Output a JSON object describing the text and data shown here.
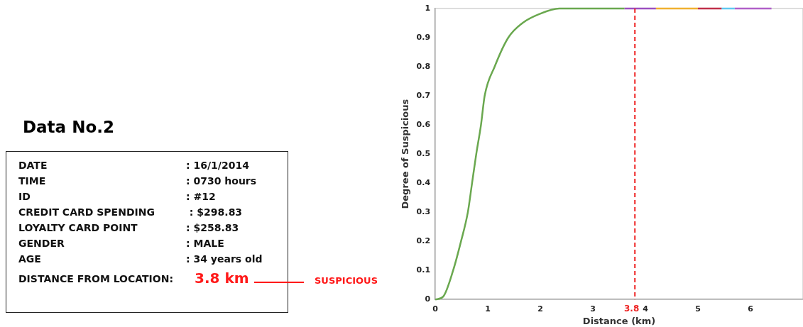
{
  "chart_data": [
    {
      "type": "other",
      "title": "Data No.2",
      "annotations": [
        "DATE",
        ": 16/1/2014",
        "TIME",
        ": 0730 hours",
        "ID",
        ": #12",
        "CREDIT CARD SPENDING",
        " : $298.83",
        "LOYALTY CARD POINT",
        ": $258.83",
        "GENDER",
        ": MALE",
        "AGE",
        ": 34 years old",
        "DISTANCE FROM LOCATION:",
        "3.8 km",
        "SUSPICIOUS"
      ]
    },
    {
      "type": "line",
      "xlabel": "Distance (km)",
      "ylabel": "Degree of Suspicious",
      "xlim": [
        0,
        7
      ],
      "xticks": [
        0,
        1,
        2,
        3,
        4,
        5,
        6
      ],
      "ylim": [
        0,
        1
      ],
      "yticks": [
        0,
        0.1,
        0.2,
        0.3,
        0.4,
        0.5,
        0.6,
        0.7,
        0.8,
        0.9,
        1
      ],
      "grid": false,
      "marker": "none",
      "ref_lines": [
        {
          "axis": "x",
          "value": 3.8,
          "label": "3.8",
          "color": "#ee2222",
          "line_style": "dashed"
        }
      ],
      "series": [
        {
          "color": "#6aa84f",
          "x": [
            0,
            0.15,
            0.34,
            0.49,
            0.62,
            0.7,
            0.78,
            0.87,
            0.94,
            1.13,
            1.39,
            1.66,
            1.97,
            2.36,
            3.0,
            3.6
          ],
          "values": [
            0,
            0.01,
            0.1,
            0.2,
            0.3,
            0.4,
            0.5,
            0.6,
            0.7,
            0.8,
            0.9,
            0.95,
            0.98,
            1,
            1,
            1
          ]
        },
        {
          "color": "#9b4fc0",
          "x": [
            3.6,
            4.2
          ],
          "values": [
            1,
            1
          ]
        },
        {
          "color": "#f0b030",
          "x": [
            4.2,
            5.0
          ],
          "values": [
            1,
            1
          ]
        },
        {
          "color": "#c0304a",
          "x": [
            5.0,
            5.45
          ],
          "values": [
            1,
            1
          ]
        },
        {
          "color": "#60c8f0",
          "x": [
            5.45,
            5.7
          ],
          "values": [
            1,
            1
          ]
        },
        {
          "color": "#b060c8",
          "x": [
            5.7,
            6.4
          ],
          "values": [
            1,
            1
          ]
        }
      ]
    }
  ]
}
